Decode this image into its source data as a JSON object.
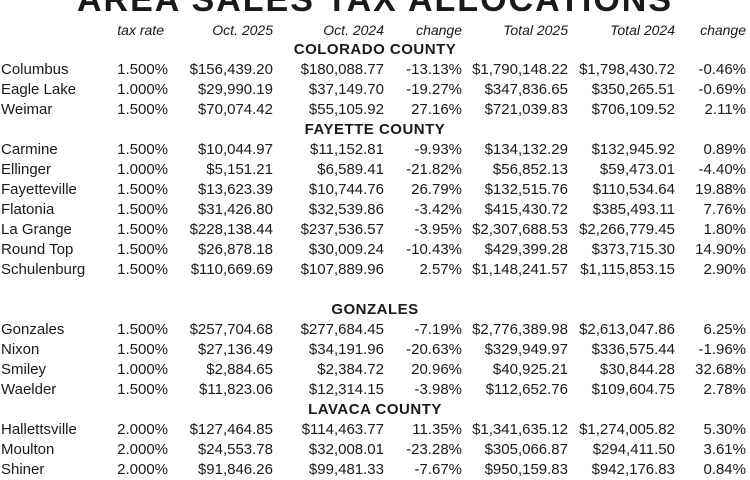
{
  "title": "AREA SALES TAX ALLOCATIONS",
  "headers": {
    "tax_rate": "tax rate",
    "oct_2025": "Oct. 2025",
    "oct_2024": "Oct. 2024",
    "change": "change",
    "total_2025": "Total 2025",
    "total_2024": "Total 2024",
    "change2": "change"
  },
  "sections": {
    "colorado": "COLORADO COUNTY",
    "fayette": "FAYETTE COUNTY",
    "gonzales": "GONZALES",
    "lavaca": "LAVACA COUNTY"
  },
  "rows": {
    "columbus": {
      "name": "Columbus",
      "rate": "1.500%",
      "oct25": "$156,439.20",
      "oct24": "$180,088.77",
      "chg": "-13.13%",
      "tot25": "$1,790,148.22",
      "tot24": "$1,798,430.72",
      "chg2": "-0.46%"
    },
    "eagle_lake": {
      "name": "Eagle Lake",
      "rate": "1.000%",
      "oct25": "$29,990.19",
      "oct24": "$37,149.70",
      "chg": "-19.27%",
      "tot25": "$347,836.65",
      "tot24": "$350,265.51",
      "chg2": "-0.69%"
    },
    "weimar": {
      "name": "Weimar",
      "rate": "1.500%",
      "oct25": "$70,074.42",
      "oct24": "$55,105.92",
      "chg": "27.16%",
      "tot25": "$721,039.83",
      "tot24": "$706,109.52",
      "chg2": "2.11%"
    },
    "carmine": {
      "name": "Carmine",
      "rate": "1.500%",
      "oct25": "$10,044.97",
      "oct24": "$11,152.81",
      "chg": "-9.93%",
      "tot25": "$134,132.29",
      "tot24": "$132,945.92",
      "chg2": "0.89%"
    },
    "ellinger": {
      "name": "Ellinger",
      "rate": "1.000%",
      "oct25": "$5,151.21",
      "oct24": "$6,589.41",
      "chg": "-21.82%",
      "tot25": "$56,852.13",
      "tot24": "$59,473.01",
      "chg2": "-4.40%"
    },
    "fayetteville": {
      "name": "Fayetteville",
      "rate": "1.500%",
      "oct25": "$13,623.39",
      "oct24": "$10,744.76",
      "chg": "26.79%",
      "tot25": "$132,515.76",
      "tot24": "$110,534.64",
      "chg2": "19.88%"
    },
    "flatonia": {
      "name": "Flatonia",
      "rate": "1.500%",
      "oct25": "$31,426.80",
      "oct24": "$32,539.86",
      "chg": "-3.42%",
      "tot25": "$415,430.72",
      "tot24": "$385,493.11",
      "chg2": "7.76%"
    },
    "la_grange": {
      "name": "La Grange",
      "rate": "1.500%",
      "oct25": "$228,138.44",
      "oct24": "$237,536.57",
      "chg": "-3.95%",
      "tot25": "$2,307,688.53",
      "tot24": "$2,266,779.45",
      "chg2": "1.80%"
    },
    "round_top": {
      "name": "Round Top",
      "rate": "1.500%",
      "oct25": "$26,878.18",
      "oct24": "$30,009.24",
      "chg": "-10.43%",
      "tot25": "$429,399.28",
      "tot24": "$373,715.30",
      "chg2": "14.90%"
    },
    "schulenburg": {
      "name": "Schulenburg",
      "rate": "1.500%",
      "oct25": "$110,669.69",
      "oct24": "$107,889.96",
      "chg": "2.57%",
      "tot25": "$1,148,241.57",
      "tot24": "$1,115,853.15",
      "chg2": "2.90%"
    },
    "gonzales": {
      "name": "Gonzales",
      "rate": "1.500%",
      "oct25": "$257,704.68",
      "oct24": "$277,684.45",
      "chg": "-7.19%",
      "tot25": "$2,776,389.98",
      "tot24": "$2,613,047.86",
      "chg2": "6.25%"
    },
    "nixon": {
      "name": "Nixon",
      "rate": "1.500%",
      "oct25": "$27,136.49",
      "oct24": "$34,191.96",
      "chg": "-20.63%",
      "tot25": "$329,949.97",
      "tot24": "$336,575.44",
      "chg2": "-1.96%"
    },
    "smiley": {
      "name": "Smiley",
      "rate": "1.000%",
      "oct25": "$2,884.65",
      "oct24": "$2,384.72",
      "chg": "20.96%",
      "tot25": "$40,925.21",
      "tot24": "$30,844.28",
      "chg2": "32.68%"
    },
    "waelder": {
      "name": "Waelder",
      "rate": "1.500%",
      "oct25": "$11,823.06",
      "oct24": "$12,314.15",
      "chg": "-3.98%",
      "tot25": "$112,652.76",
      "tot24": "$109,604.75",
      "chg2": "2.78%"
    },
    "hallettsville": {
      "name": "Hallettsville",
      "rate": "2.000%",
      "oct25": "$127,464.85",
      "oct24": "$114,463.77",
      "chg": "11.35%",
      "tot25": "$1,341,635.12",
      "tot24": "$1,274,005.82",
      "chg2": "5.30%"
    },
    "moulton": {
      "name": "Moulton",
      "rate": "2.000%",
      "oct25": "$24,553.78",
      "oct24": "$32,008.01",
      "chg": "-23.28%",
      "tot25": "$305,066.87",
      "tot24": "$294,411.50",
      "chg2": "3.61%"
    },
    "shiner": {
      "name": "Shiner",
      "rate": "2.000%",
      "oct25": "$91,846.26",
      "oct24": "$99,481.33",
      "chg": "-7.67%",
      "tot25": "$950,159.83",
      "tot24": "$942,176.83",
      "chg2": "0.84%"
    }
  }
}
